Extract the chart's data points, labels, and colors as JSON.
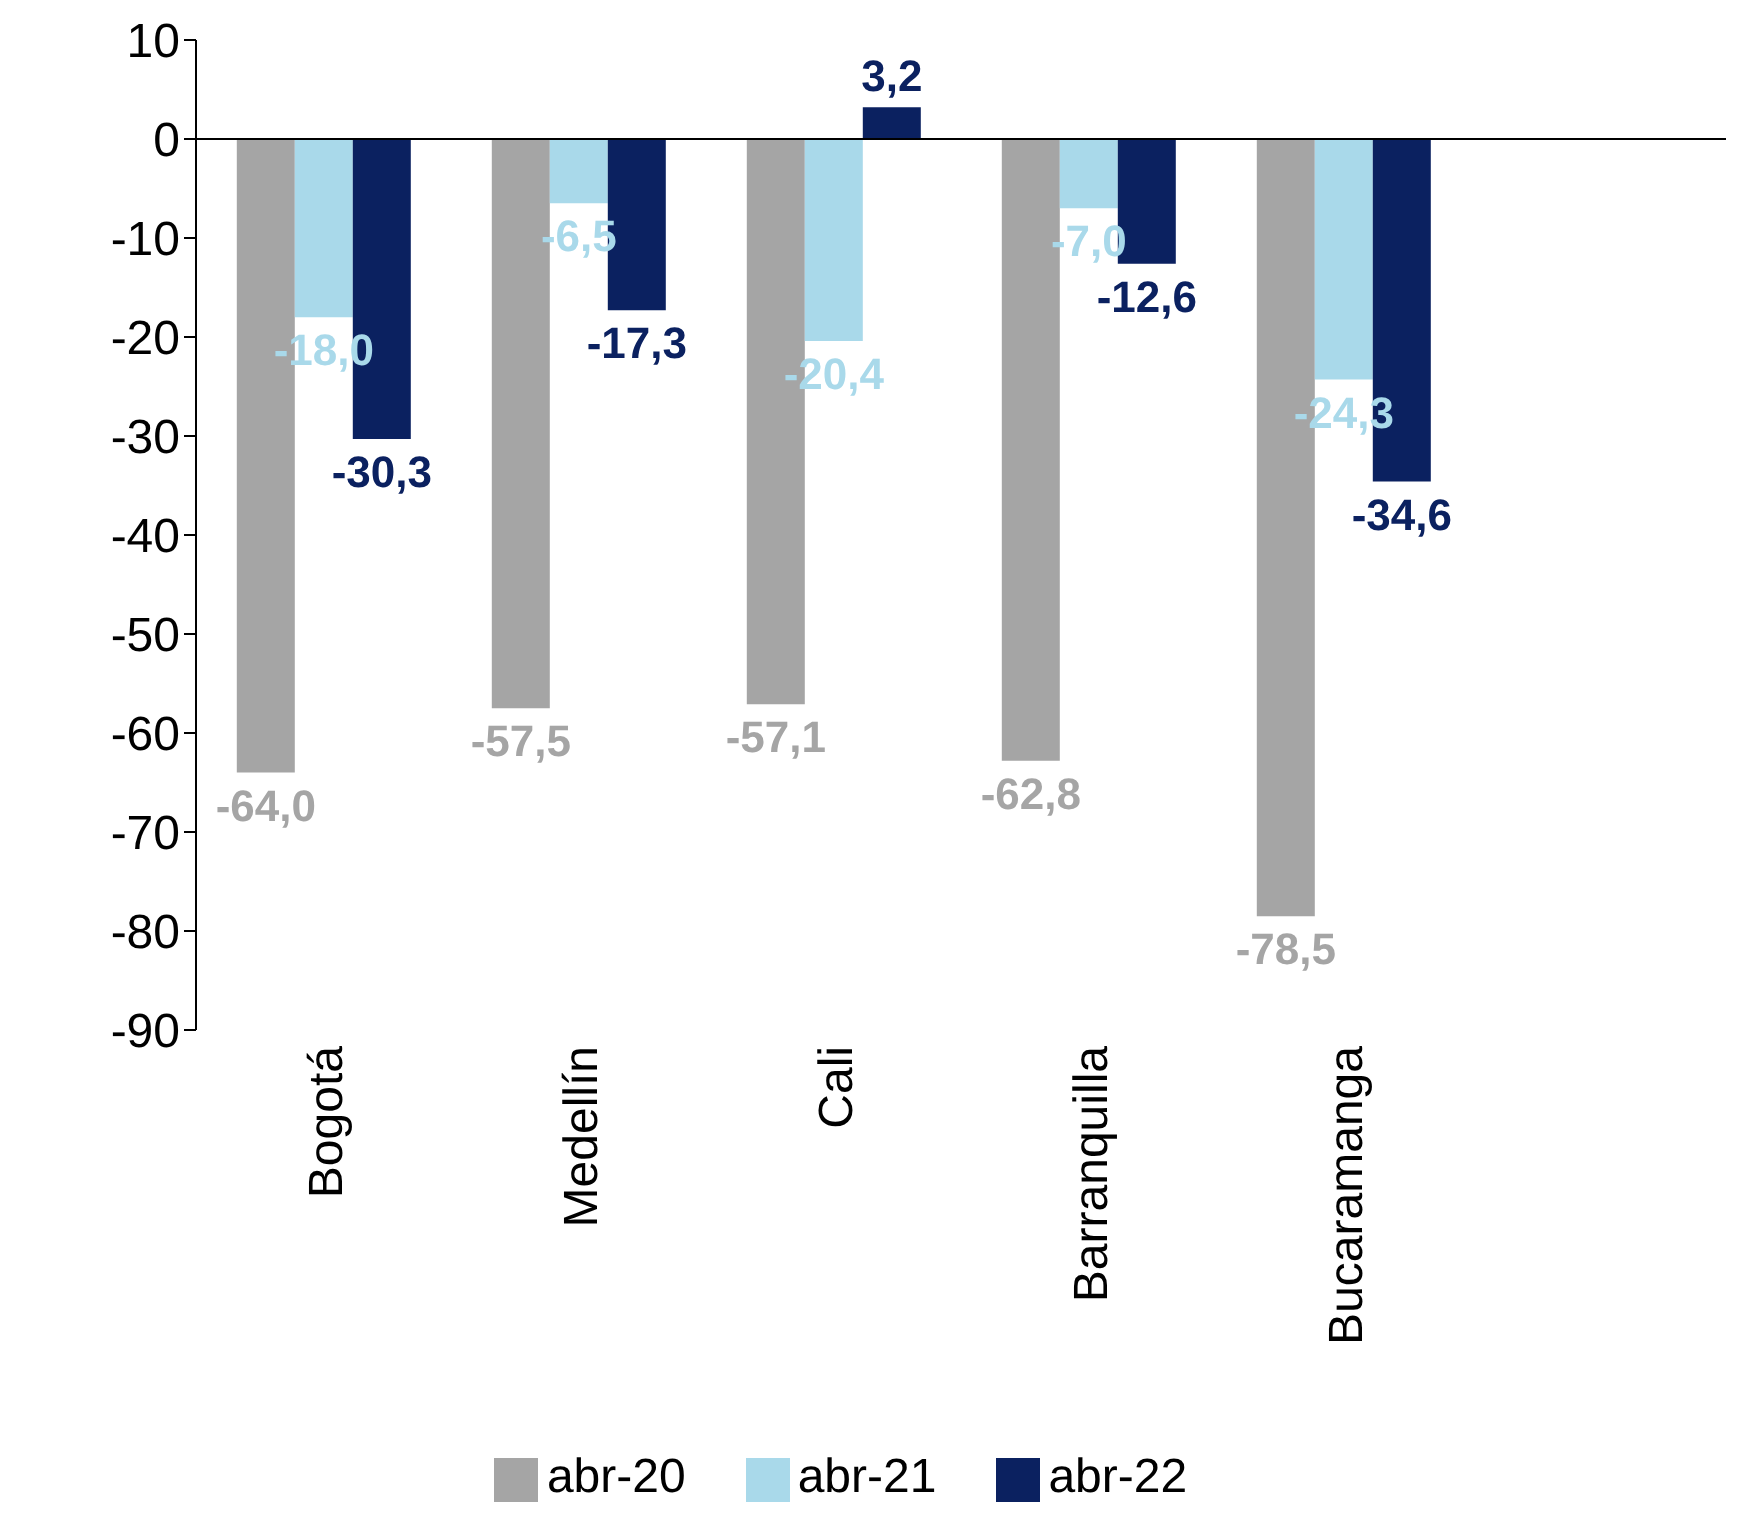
{
  "chart_data": {
    "type": "bar",
    "categories": [
      "Bogotá",
      "Medellín",
      "Cali",
      "Barranquilla",
      "Bucaramanga",
      null
    ],
    "series": [
      {
        "name": "abr-20",
        "color": "#a5a5a5",
        "values": [
          -64.0,
          -57.5,
          -57.1,
          -62.8,
          -78.5,
          null
        ],
        "value_labels": [
          "-64,0",
          "-57,5",
          "-57,1",
          "-62,8",
          "-78,5",
          null
        ]
      },
      {
        "name": "abr-21",
        "color": "#a9d9ea",
        "values": [
          -18.0,
          -6.5,
          -20.4,
          -7.0,
          -24.3,
          null
        ],
        "value_labels": [
          "-18,0",
          "-6,5",
          "-20,4",
          "-7,0",
          "-24,3",
          null
        ]
      },
      {
        "name": "abr-22",
        "color": "#0b2160",
        "values": [
          -30.3,
          -17.3,
          3.2,
          -12.6,
          -34.6,
          null
        ],
        "value_labels": [
          "-30,3",
          "-17,3",
          "3,2",
          "-12,6",
          "-34,6",
          null
        ]
      }
    ],
    "ylim": [
      -90,
      10
    ],
    "yticks": [
      10,
      0,
      -10,
      -20,
      -30,
      -40,
      -50,
      -60,
      -70,
      -80,
      -90
    ],
    "grid": false,
    "ref_lines": [
      {
        "axis": "y",
        "value": 0,
        "color": "#000000"
      }
    ],
    "legend": "bottom"
  }
}
